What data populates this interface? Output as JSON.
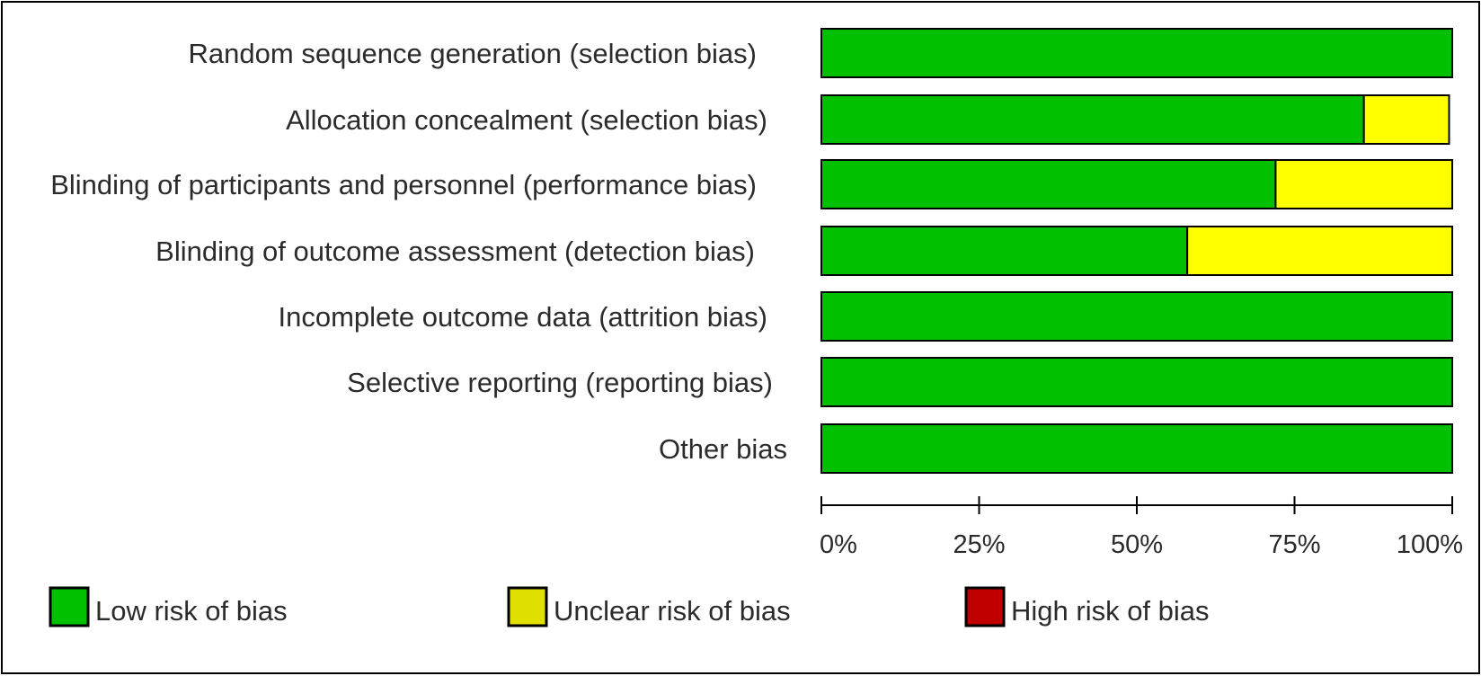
{
  "chart_data": {
    "type": "bar",
    "orientation": "horizontal",
    "stacked": true,
    "categories": [
      "Random sequence generation (selection bias)",
      "Allocation concealment (selection bias)",
      "Blinding of participants and personnel (performance bias)",
      "Blinding of outcome assessment (detection bias)",
      "Incomplete outcome data (attrition bias)",
      "Selective reporting (reporting bias)",
      "Other bias"
    ],
    "series": [
      {
        "name": "Low risk of bias",
        "color": "#00c000",
        "values": [
          100,
          86,
          72,
          58,
          100,
          100,
          100
        ]
      },
      {
        "name": "Unclear risk of bias",
        "color": "#ffff00",
        "values": [
          0,
          13.5,
          28,
          42,
          0,
          0,
          0
        ]
      },
      {
        "name": "High risk of bias",
        "color": "#c00000",
        "values": [
          0,
          0,
          0,
          0,
          0,
          0,
          0
        ]
      }
    ],
    "x_ticks": [
      "0%",
      "25%",
      "50%",
      "75%",
      "100%"
    ],
    "xlim": [
      0,
      100
    ],
    "grid": false,
    "legend_position": "bottom",
    "legend": [
      {
        "label": "Low risk of bias",
        "color": "#00c000"
      },
      {
        "label": "Unclear risk of bias",
        "color": "#e0e000"
      },
      {
        "label": "High risk of bias",
        "color": "#c00000"
      }
    ]
  }
}
